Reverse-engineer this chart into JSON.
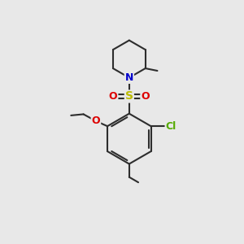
{
  "background_color": "#e8e8e8",
  "bond_color": "#2d2d2d",
  "bond_width": 1.5,
  "atom_colors": {
    "N": "#0000cc",
    "O": "#dd0000",
    "S": "#bbbb00",
    "Cl": "#55aa00",
    "C": "#2d2d2d"
  },
  "fig_size": [
    3.0,
    3.0
  ],
  "dpi": 100
}
